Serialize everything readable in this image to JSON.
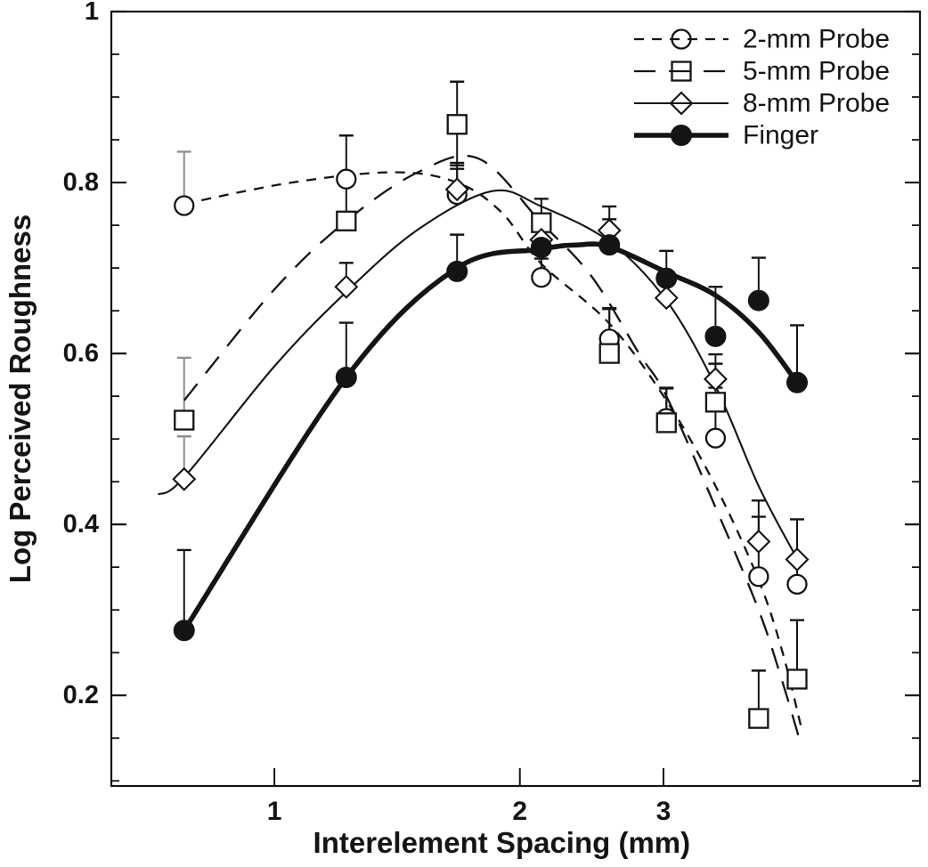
{
  "figure": {
    "background": "#ffffff",
    "ink": "#141414",
    "light_ink": "#8f8f8f"
  },
  "chart_data": {
    "type": "scatter",
    "title": "",
    "xlabel": "Interelement Spacing (mm)",
    "ylabel": "Log Perceived Roughness",
    "x_scale": "log",
    "grid": "off",
    "x_ticks": [
      1,
      2,
      3
    ],
    "x_tick_labels": [
      "1",
      "2",
      "3"
    ],
    "y_ticks": [
      0.2,
      0.4,
      0.6,
      0.8,
      1
    ],
    "y_tick_labels": [
      "0.2",
      "0.4",
      "0.6",
      "0.8",
      "1"
    ],
    "y_minor_tick_step": 0.05,
    "xlim": [
      0.631,
      6.19
    ],
    "ylim": [
      0.094,
      1.0
    ],
    "x": [
      0.775,
      1.225,
      1.675,
      2.125,
      2.575,
      3.025,
      3.475,
      3.925,
      4.375
    ],
    "series": [
      {
        "name": "2-mm Probe",
        "marker": "open-circle",
        "line": "short-dash",
        "values": [
          0.773,
          0.804,
          0.786,
          0.689,
          0.617,
          0.524,
          0.501,
          0.339,
          0.33
        ],
        "err_up": [
          0.063,
          0.051,
          0.03,
          0.022,
          0.036,
          0.036,
          0.059,
          0.07,
          0.03
        ],
        "err_down": [
          0,
          0,
          0,
          0,
          0,
          0,
          0,
          0,
          0
        ],
        "err_light": [
          true,
          false,
          false,
          false,
          false,
          false,
          false,
          false,
          false
        ],
        "fit": [
          [
            0.775,
            0.775
          ],
          [
            1.05,
            0.8
          ],
          [
            1.4,
            0.812
          ],
          [
            1.675,
            0.8
          ],
          [
            1.9,
            0.765
          ],
          [
            2.125,
            0.705
          ],
          [
            2.575,
            0.635
          ],
          [
            3.025,
            0.545
          ],
          [
            3.475,
            0.445
          ],
          [
            3.925,
            0.335
          ],
          [
            4.2,
            0.25
          ],
          [
            4.42,
            0.165
          ]
        ]
      },
      {
        "name": "5-mm Probe",
        "marker": "open-square",
        "line": "long-dash",
        "values": [
          0.522,
          0.755,
          0.868,
          0.753,
          0.6,
          0.519,
          0.543,
          0.173,
          0.219
        ],
        "err_up": [
          0.073,
          0.049,
          0.05,
          0.028,
          0.052,
          0.04,
          0.045,
          0.056,
          0.069
        ],
        "err_down": [
          0,
          0,
          0.048,
          0,
          0,
          0,
          0,
          0,
          0
        ],
        "err_light": [
          true,
          false,
          false,
          false,
          false,
          false,
          false,
          false,
          false
        ],
        "fit": [
          [
            0.775,
            0.545
          ],
          [
            1.0,
            0.675
          ],
          [
            1.225,
            0.755
          ],
          [
            1.5,
            0.812
          ],
          [
            1.78,
            0.828
          ],
          [
            2.125,
            0.753
          ],
          [
            2.45,
            0.69
          ],
          [
            2.8,
            0.6
          ],
          [
            3.025,
            0.55
          ],
          [
            3.475,
            0.42
          ],
          [
            3.925,
            0.3
          ],
          [
            4.2,
            0.215
          ],
          [
            4.4,
            0.15
          ]
        ]
      },
      {
        "name": "8-mm Probe",
        "marker": "open-diamond",
        "line": "thin-solid",
        "values": [
          0.453,
          0.678,
          0.792,
          0.733,
          0.744,
          0.665,
          0.57,
          0.38,
          0.359
        ],
        "err_up": [
          0.05,
          0.028,
          0.031,
          0.02,
          0.028,
          0.022,
          0.029,
          0.048,
          0.047
        ],
        "err_down": [
          0,
          0,
          0,
          0,
          0,
          0,
          0,
          0,
          0
        ],
        "err_light": [
          true,
          false,
          false,
          false,
          false,
          false,
          false,
          false,
          false
        ],
        "fit": [
          [
            0.72,
            0.435
          ],
          [
            0.775,
            0.455
          ],
          [
            1.0,
            0.585
          ],
          [
            1.225,
            0.672
          ],
          [
            1.5,
            0.745
          ],
          [
            1.85,
            0.79
          ],
          [
            2.125,
            0.772
          ],
          [
            2.575,
            0.731
          ],
          [
            3.025,
            0.662
          ],
          [
            3.475,
            0.562
          ],
          [
            3.925,
            0.445
          ],
          [
            4.375,
            0.36
          ]
        ]
      },
      {
        "name": "Finger",
        "marker": "filled-circle",
        "line": "thick-solid",
        "values": [
          0.276,
          0.572,
          0.696,
          0.724,
          0.727,
          0.688,
          0.62,
          0.662,
          0.566
        ],
        "err_up": [
          0.094,
          0.064,
          0.043,
          0.024,
          0.03,
          0.032,
          0.058,
          0.05,
          0.067
        ],
        "err_down": [
          0,
          0,
          0,
          0,
          0,
          0,
          0,
          0,
          0
        ],
        "err_light": [
          false,
          false,
          false,
          false,
          false,
          false,
          false,
          false,
          false
        ],
        "fit": [
          [
            0.775,
            0.276
          ],
          [
            1.225,
            0.572
          ],
          [
            1.675,
            0.7
          ],
          [
            2.125,
            0.722
          ],
          [
            2.35,
            0.727
          ],
          [
            2.575,
            0.725
          ],
          [
            3.025,
            0.695
          ],
          [
            3.475,
            0.668
          ],
          [
            3.925,
            0.625
          ],
          [
            4.375,
            0.566
          ]
        ]
      }
    ],
    "legend": {
      "position": "top-right",
      "entries": [
        "2-mm Probe",
        "5-mm Probe",
        "8-mm Probe",
        "Finger"
      ]
    }
  }
}
